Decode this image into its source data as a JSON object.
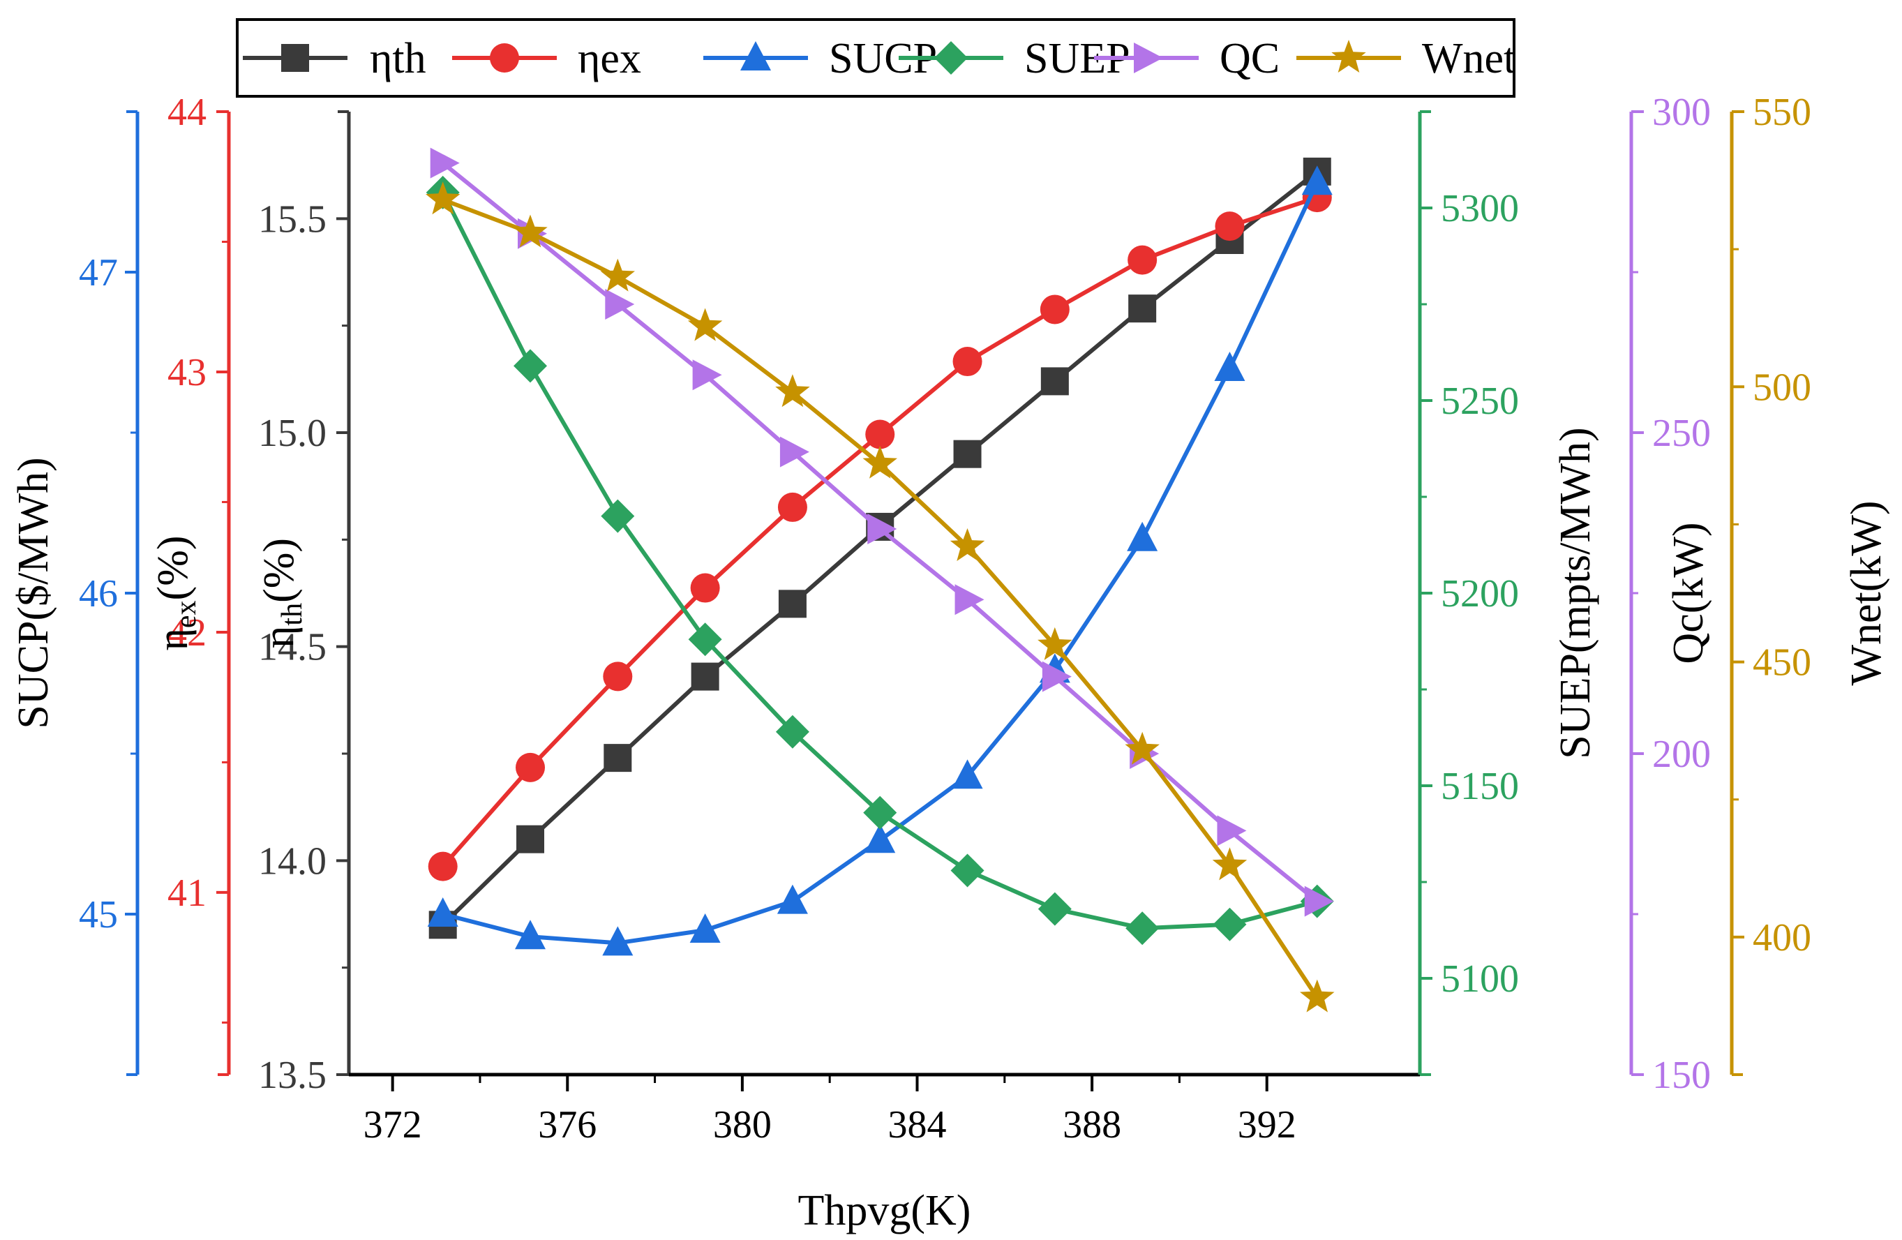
{
  "chart_data": {
    "type": "line",
    "xlabel": "Thpvg(K)",
    "x": [
      373.15,
      375.15,
      377.15,
      379.15,
      381.15,
      383.15,
      385.15,
      387.15,
      389.15,
      391.15,
      393.15
    ],
    "xlim": [
      371,
      395.5
    ],
    "xticks": [
      372,
      376,
      380,
      384,
      388,
      392
    ],
    "xtick_labels": [
      "372",
      "376",
      "380",
      "384",
      "388",
      "392"
    ],
    "legend": [
      "ηth",
      "ηex",
      "SUCP",
      "SUEP",
      "QC",
      "Wnet"
    ],
    "series": [
      {
        "name": "ηth",
        "axis": "eta_th",
        "color": "#3a3a3a",
        "marker": "square",
        "values": [
          13.85,
          14.05,
          14.24,
          14.43,
          14.6,
          14.78,
          14.95,
          15.12,
          15.29,
          15.45,
          15.61
        ]
      },
      {
        "name": "ηex",
        "axis": "eta_ex",
        "color": "#e8302f",
        "marker": "circle",
        "values": [
          41.1,
          41.48,
          41.83,
          42.17,
          42.48,
          42.76,
          43.04,
          43.24,
          43.43,
          43.56,
          43.67
        ]
      },
      {
        "name": "SUCP",
        "axis": "sucp",
        "color": "#1f6fdc",
        "marker": "triangle-up",
        "values": [
          45.0,
          44.93,
          44.91,
          44.95,
          45.04,
          45.23,
          45.43,
          45.76,
          46.17,
          46.7,
          47.28
        ]
      },
      {
        "name": "SUEP",
        "axis": "suep",
        "color": "#2ca25f",
        "marker": "diamond",
        "values": [
          5304,
          5259,
          5220,
          5188,
          5164,
          5143,
          5128,
          5118,
          5113,
          5114,
          5120
        ]
      },
      {
        "name": "QC",
        "axis": "qc",
        "color": "#b374e8",
        "marker": "triangle-right",
        "values": [
          292,
          281,
          270,
          259,
          247,
          235,
          224,
          212,
          200,
          188,
          177
        ]
      },
      {
        "name": "Wnet",
        "axis": "wnet",
        "color": "#c69200",
        "marker": "star",
        "values": [
          534,
          528,
          520,
          511,
          499,
          486,
          471,
          453,
          434,
          413,
          389
        ]
      }
    ],
    "axes": {
      "sucp": {
        "label": "SUCP($/MWh)",
        "ylim": [
          44.5,
          47.5
        ],
        "ticks": [
          45,
          46,
          47
        ],
        "tick_labels": [
          "45",
          "46",
          "47"
        ],
        "color": "#1f6fdc"
      },
      "eta_ex": {
        "label_main": "η",
        "label_sub": "ex",
        "label_tail": "(%)",
        "ylim": [
          40.3,
          44.0
        ],
        "ticks": [
          41,
          42,
          43,
          44
        ],
        "tick_labels": [
          "41",
          "42",
          "43",
          "44"
        ],
        "color": "#e8302f"
      },
      "eta_th": {
        "label_main": "η",
        "label_sub": "th",
        "label_tail": "(%)",
        "ylim": [
          13.5,
          15.75
        ],
        "ticks": [
          13.5,
          14.0,
          14.5,
          15.0,
          15.5
        ],
        "tick_labels": [
          "13.5",
          "14.0",
          "14.5",
          "15.0",
          "15.5"
        ],
        "color": "#3a3a3a"
      },
      "suep": {
        "label": "SUEP(mpts/MWh)",
        "ylim": [
          5075,
          5325
        ],
        "ticks": [
          5100,
          5150,
          5200,
          5250,
          5300
        ],
        "tick_labels": [
          "5100",
          "5150",
          "5200",
          "5250",
          "5300"
        ],
        "color": "#2ca25f"
      },
      "qc": {
        "label": "Qc(kW)",
        "ylim": [
          150,
          300
        ],
        "ticks": [
          150,
          200,
          250,
          300
        ],
        "tick_labels": [
          "150",
          "200",
          "250",
          "300"
        ],
        "color": "#b374e8"
      },
      "wnet": {
        "label": "Wnet(kW)",
        "ylim": [
          375,
          550
        ],
        "ticks": [
          400,
          450,
          500,
          550
        ],
        "tick_labels": [
          "400",
          "450",
          "500",
          "550"
        ],
        "color": "#c69200"
      }
    }
  }
}
